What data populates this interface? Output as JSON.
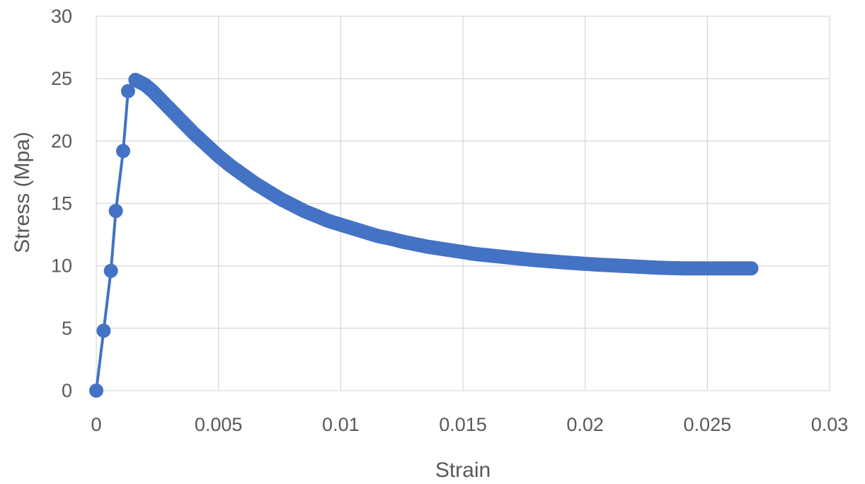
{
  "chart_data": {
    "type": "scatter",
    "title": "",
    "xlabel": "Strain",
    "ylabel": "Stress (Mpa)",
    "xlim": [
      0,
      0.03
    ],
    "ylim": [
      0,
      30
    ],
    "x_ticks": [
      0,
      0.005,
      0.01,
      0.015,
      0.02,
      0.025,
      0.03
    ],
    "x_tick_labels": [
      "0",
      "0.005",
      "0.01",
      "0.015",
      "0.02",
      "0.025",
      "0.03"
    ],
    "y_ticks": [
      0,
      5,
      10,
      15,
      20,
      25,
      30
    ],
    "y_tick_labels": [
      "0",
      "5",
      "10",
      "15",
      "20",
      "25",
      "30"
    ],
    "grid": true,
    "legend": "none",
    "markers": true,
    "lines": true,
    "series": [
      {
        "color": "#4472c4",
        "x": [
          0,
          0.0003,
          0.0006,
          0.0008,
          0.0011,
          0.0013,
          0.0016,
          0.0018,
          0.002,
          0.0023,
          0.0026,
          0.003,
          0.0035,
          0.004,
          0.0045,
          0.005,
          0.0055,
          0.006,
          0.0065,
          0.007,
          0.0075,
          0.008,
          0.0085,
          0.009,
          0.0095,
          0.01,
          0.0105,
          0.011,
          0.0115,
          0.012,
          0.0125,
          0.013,
          0.0135,
          0.014,
          0.0145,
          0.015,
          0.0155,
          0.016,
          0.0165,
          0.017,
          0.0175,
          0.018,
          0.0185,
          0.019,
          0.0195,
          0.02,
          0.0205,
          0.021,
          0.0215,
          0.022,
          0.0225,
          0.023,
          0.0235,
          0.024,
          0.0245,
          0.025,
          0.0255,
          0.026,
          0.0265,
          0.0268
        ],
        "y": [
          0,
          4.8,
          9.6,
          14.4,
          19.2,
          24.0,
          24.9,
          24.7,
          24.5,
          24.0,
          23.4,
          22.6,
          21.6,
          20.6,
          19.7,
          18.8,
          18.0,
          17.3,
          16.6,
          16.0,
          15.4,
          14.9,
          14.4,
          14.0,
          13.6,
          13.3,
          13.0,
          12.7,
          12.4,
          12.2,
          11.95,
          11.75,
          11.55,
          11.4,
          11.25,
          11.1,
          10.95,
          10.85,
          10.75,
          10.65,
          10.55,
          10.45,
          10.38,
          10.3,
          10.23,
          10.16,
          10.1,
          10.05,
          10.0,
          9.95,
          9.9,
          9.85,
          9.82,
          9.8,
          9.8,
          9.8,
          9.8,
          9.8,
          9.8,
          9.8
        ]
      }
    ]
  }
}
